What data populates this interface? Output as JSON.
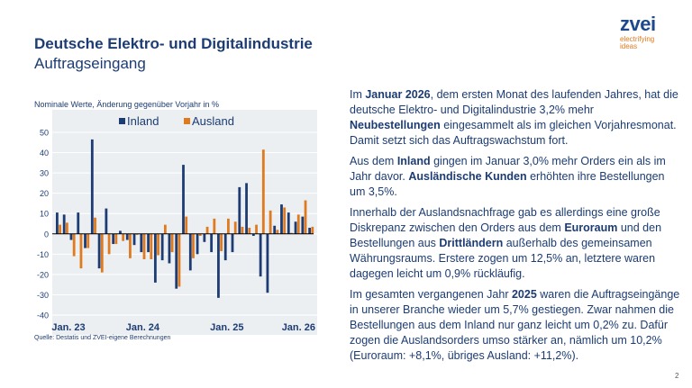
{
  "header": {
    "title": "Deutsche Elektro- und Digitalindustrie",
    "subtitle": "Auftragseingang"
  },
  "logo": {
    "name": "zvei",
    "tagline1": "electrifying",
    "tagline2": "ideas"
  },
  "chart_note": "Nominale Werte, Änderung gegenüber Vorjahr in %",
  "source": "Quelle: Destatis und ZVEI-eigene Berechnungen",
  "page_number": "2",
  "chart_data": {
    "type": "bar",
    "ylim": [
      -40,
      50
    ],
    "yticks": [
      -40,
      -30,
      -20,
      -10,
      0,
      10,
      20,
      30,
      40,
      50
    ],
    "grid": true,
    "legend": "top",
    "xtick_labels": [
      {
        "index": 0,
        "label": "Jan. 23"
      },
      {
        "index": 12,
        "label": "Jan. 24"
      },
      {
        "index": 24,
        "label": "Jan. 25"
      },
      {
        "index": 36,
        "label": "Jan. 26"
      }
    ],
    "categories": [
      "2023-01",
      "2023-02",
      "2023-03",
      "2023-04",
      "2023-05",
      "2023-06",
      "2023-07",
      "2023-08",
      "2023-09",
      "2023-10",
      "2023-11",
      "2023-12",
      "2024-01",
      "2024-02",
      "2024-03",
      "2024-04",
      "2024-05",
      "2024-06",
      "2024-07",
      "2024-08",
      "2024-09",
      "2024-10",
      "2024-11",
      "2024-12",
      "2025-01",
      "2025-02",
      "2025-03",
      "2025-04",
      "2025-05",
      "2025-06",
      "2025-07",
      "2025-08",
      "2025-09",
      "2025-10",
      "2025-11",
      "2025-12",
      "2026-01"
    ],
    "series": [
      {
        "name": "Inland",
        "color": "#1c3c73",
        "values": [
          10.5,
          9.5,
          -3,
          10.5,
          -7,
          46.5,
          -17,
          12.5,
          -5,
          1.5,
          -3,
          -5.5,
          -9,
          -9,
          -24,
          -13,
          -14.5,
          -27,
          34,
          -18,
          -10,
          -4,
          -9,
          -31.5,
          -13,
          -9,
          23,
          25,
          -1,
          -21,
          -29,
          4,
          14.5,
          10.5,
          6,
          8.5,
          3
        ]
      },
      {
        "name": "Ausland",
        "color": "#e07a1f",
        "values": [
          4.5,
          5.5,
          -11,
          -17,
          -7,
          8,
          -19,
          -10,
          -5,
          -3.5,
          -12,
          -0.5,
          -12.5,
          -12.5,
          -10.5,
          4.5,
          -9,
          -26,
          8.5,
          -12,
          -1,
          3.5,
          7.5,
          -8.5,
          7.5,
          6,
          3.5,
          3,
          4.5,
          41.5,
          11.5,
          2,
          13,
          0.5,
          9.5,
          16.5,
          3.5
        ]
      }
    ]
  },
  "body": {
    "p1": [
      {
        "t": "Im "
      },
      {
        "b": "Januar 2026"
      },
      {
        "t": ", dem ersten Monat des laufenden Jahres, hat die deutsche Elektro- und Digitalindustrie 3,2% mehr "
      },
      {
        "b": "Neubestellungen"
      },
      {
        "t": " eingesammelt als im gleichen Vorjahresmonat. Damit setzt sich das Auftragswachstum fort."
      }
    ],
    "p2": [
      {
        "t": "Aus dem "
      },
      {
        "b": "Inland"
      },
      {
        "t": " gingen im Januar 3,0% mehr Orders ein als im Jahr davor. "
      },
      {
        "b": "Ausländische Kunden"
      },
      {
        "t": " erhöhten ihre Bestellungen um 3,5%."
      }
    ],
    "p3": [
      {
        "t": "Innerhalb der Auslandsnachfrage gab es allerdings eine große Diskrepanz zwischen den Orders aus dem "
      },
      {
        "b": "Euroraum"
      },
      {
        "t": " und den Bestellungen aus "
      },
      {
        "b": "Drittländern"
      },
      {
        "t": " außerhalb des gemeinsamen Währungsraums. Erstere zogen um 12,5% an, letztere waren dagegen leicht um 0,9% rückläufig."
      }
    ],
    "p4": [
      {
        "t": "Im gesamten vergangenen Jahr "
      },
      {
        "b": "2025"
      },
      {
        "t": " waren die Auftragseingänge in unserer Branche wieder um 5,7% gestiegen. Zwar nahmen die Bestellungen aus dem Inland nur ganz leicht um 0,2% zu. Dafür zogen die Auslandsorders umso stärker an, nämlich um 10,2% (Euroraum: +8,1%, übriges Ausland: +11,2%)."
      }
    ]
  }
}
